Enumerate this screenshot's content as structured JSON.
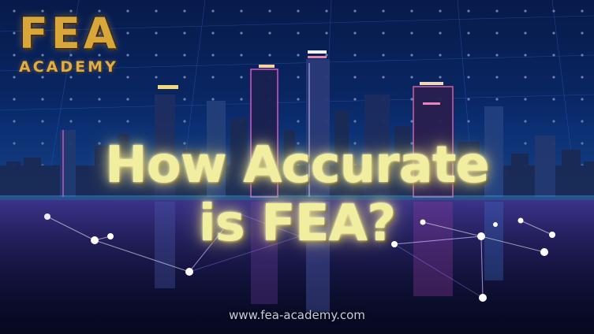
{
  "logo": {
    "main": "FEA",
    "sub": "ACADEMY",
    "color": "#d9a63a"
  },
  "headline": {
    "line1": "How Accurate",
    "line2": "is FEA?",
    "color": "#f2eea0"
  },
  "website": "www.fea-academy.com",
  "background": {
    "sky_color": "#0a2a6a",
    "water_color": "#0b0f33",
    "accent_colors": [
      "#ff5fd0",
      "#9a7bff",
      "#ffe27a",
      "#3fa0ff"
    ]
  }
}
